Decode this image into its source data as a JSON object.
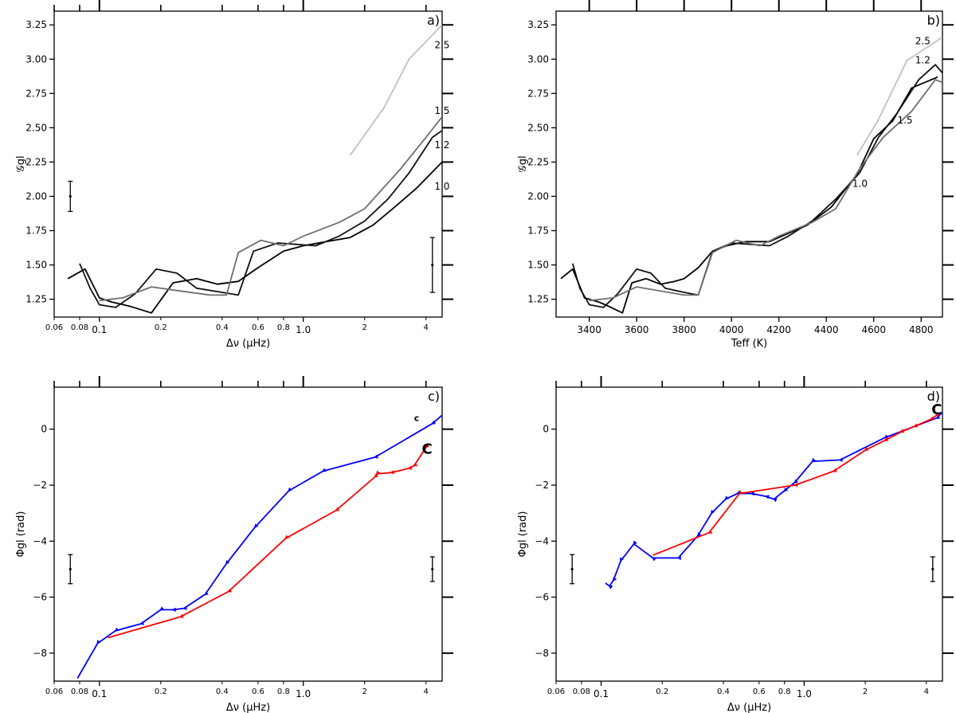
{
  "chart_data": [
    {
      "id": "a",
      "type": "line",
      "panel_label": "a)",
      "xscale": "log",
      "xlim": [
        0.06,
        4.8
      ],
      "ylim": [
        1.12,
        3.35
      ],
      "xlabel": "Δν (μHz)",
      "ylabel": "𝒢gl",
      "major_xticks": [
        {
          "v": 0.1,
          "label": "0.1"
        },
        {
          "v": 1.0,
          "label": "1.0"
        }
      ],
      "minor_xticks": [
        {
          "v": 0.06,
          "label": "0.06"
        },
        {
          "v": 0.08,
          "label": "0.08"
        },
        {
          "v": 0.2,
          "label": "0.2"
        },
        {
          "v": 0.4,
          "label": "0.4"
        },
        {
          "v": 0.6,
          "label": "0.6"
        },
        {
          "v": 0.8,
          "label": "0.8"
        },
        {
          "v": 2,
          "label": "2"
        },
        {
          "v": 4,
          "label": "4"
        }
      ],
      "yticks": [
        1.25,
        1.5,
        1.75,
        2.0,
        2.25,
        2.5,
        2.75,
        3.0,
        3.25
      ],
      "ytick_labels": [
        "1.25",
        "1.50",
        "1.75",
        "2.00",
        "2.25",
        "2.50",
        "2.75",
        "3.00",
        "3.25"
      ],
      "series": [
        {
          "name": "1.0",
          "color": "#000000",
          "x": [
            0.07,
            0.085,
            0.1,
            0.115,
            0.14,
            0.18,
            0.23,
            0.3,
            0.38,
            0.48,
            0.6,
            0.8,
            1.0,
            1.3,
            1.7,
            2.2,
            2.8,
            3.6,
            4.8
          ],
          "y": [
            1.4,
            1.47,
            1.26,
            1.23,
            1.2,
            1.15,
            1.37,
            1.4,
            1.36,
            1.38,
            1.48,
            1.6,
            1.64,
            1.67,
            1.7,
            1.79,
            1.92,
            2.06,
            2.25
          ]
        },
        {
          "name": "1.2",
          "color": "#111111",
          "x": [
            0.08,
            0.09,
            0.1,
            0.12,
            0.15,
            0.19,
            0.24,
            0.3,
            0.4,
            0.48,
            0.57,
            0.75,
            0.92,
            1.15,
            1.5,
            2.0,
            2.6,
            3.3,
            4.3,
            4.8
          ],
          "y": [
            1.51,
            1.33,
            1.21,
            1.19,
            1.29,
            1.47,
            1.44,
            1.33,
            1.3,
            1.28,
            1.6,
            1.66,
            1.65,
            1.64,
            1.71,
            1.82,
            1.98,
            2.17,
            2.43,
            2.48
          ]
        },
        {
          "name": "1.5",
          "color": "#6f6f6f",
          "x": [
            0.1,
            0.13,
            0.18,
            0.25,
            0.35,
            0.42,
            0.48,
            0.62,
            0.8,
            1.0,
            1.5,
            2.0,
            3.0,
            4.0,
            4.8
          ],
          "y": [
            1.24,
            1.26,
            1.34,
            1.31,
            1.28,
            1.28,
            1.59,
            1.68,
            1.64,
            1.71,
            1.81,
            1.91,
            2.2,
            2.43,
            2.58
          ]
        },
        {
          "name": "2.5",
          "color": "#c0c0c0",
          "x": [
            1.7,
            2.5,
            3.3,
            4.8
          ],
          "y": [
            2.3,
            2.65,
            3.0,
            3.25
          ]
        }
      ],
      "curve_labels": [
        {
          "text": "2.5",
          "color": "#a0a0a0",
          "x": 4.4,
          "y": 3.08
        },
        {
          "text": "1.5",
          "color": "#6f6f6f",
          "x": 4.4,
          "y": 2.6
        },
        {
          "text": "1.2",
          "color": "#000000",
          "x": 4.4,
          "y": 2.35
        },
        {
          "text": "1.0",
          "color": "#000000",
          "x": 4.4,
          "y": 2.05
        }
      ],
      "error_bars": [
        {
          "x": 0.072,
          "y": 2.0,
          "err": 0.11
        },
        {
          "x": 4.3,
          "y": 1.5,
          "err": 0.2
        }
      ]
    },
    {
      "id": "b",
      "type": "line",
      "panel_label": "b)",
      "xscale": "linear",
      "xlim": [
        3260,
        4890
      ],
      "ylim": [
        1.12,
        3.35
      ],
      "xlabel": "Teff (K)",
      "ylabel": "𝒢gl",
      "major_xticks": [
        {
          "v": 3400,
          "label": "3400"
        },
        {
          "v": 3600,
          "label": "3600"
        },
        {
          "v": 3800,
          "label": "3800"
        },
        {
          "v": 4000,
          "label": "4000"
        },
        {
          "v": 4200,
          "label": "4200"
        },
        {
          "v": 4400,
          "label": "4400"
        },
        {
          "v": 4600,
          "label": "4600"
        },
        {
          "v": 4800,
          "label": "4800"
        }
      ],
      "minor_xticks": [],
      "yticks": [
        1.25,
        1.5,
        1.75,
        2.0,
        2.25,
        2.5,
        2.75,
        3.0,
        3.25
      ],
      "ytick_labels": [
        "1.25",
        "1.50",
        "1.75",
        "2.00",
        "2.25",
        "2.50",
        "2.75",
        "3.00",
        "3.25"
      ],
      "series": [
        {
          "name": "1.0",
          "color": "#000000",
          "x": [
            3280,
            3330,
            3380,
            3440,
            3480,
            3540,
            3580,
            3640,
            3700,
            3760,
            3800,
            3860,
            3920,
            3980,
            4060,
            4160,
            4200,
            4320,
            4420,
            4530,
            4600,
            4680,
            4760,
            4870
          ],
          "y": [
            1.4,
            1.47,
            1.26,
            1.23,
            1.2,
            1.15,
            1.37,
            1.4,
            1.36,
            1.38,
            1.4,
            1.48,
            1.6,
            1.64,
            1.67,
            1.67,
            1.7,
            1.79,
            1.92,
            2.16,
            2.42,
            2.55,
            2.79,
            2.87
          ]
        },
        {
          "name": "1.2",
          "color": "#111111",
          "x": [
            3330,
            3360,
            3400,
            3460,
            3520,
            3600,
            3660,
            3720,
            3800,
            3860,
            3920,
            4000,
            4080,
            4160,
            4240,
            4340,
            4440,
            4540,
            4620,
            4700,
            4790,
            4860,
            4890
          ],
          "y": [
            1.51,
            1.33,
            1.21,
            1.19,
            1.29,
            1.47,
            1.44,
            1.33,
            1.3,
            1.28,
            1.6,
            1.66,
            1.65,
            1.64,
            1.71,
            1.82,
            1.98,
            2.17,
            2.43,
            2.61,
            2.85,
            2.96,
            2.9
          ]
        },
        {
          "name": "1.5",
          "color": "#6f6f6f",
          "x": [
            3400,
            3500,
            3600,
            3700,
            3800,
            3860,
            3920,
            4020,
            4120,
            4200,
            4340,
            4440,
            4540,
            4640,
            4760,
            4860,
            4890
          ],
          "y": [
            1.24,
            1.26,
            1.34,
            1.31,
            1.28,
            1.28,
            1.59,
            1.68,
            1.64,
            1.71,
            1.81,
            1.91,
            2.2,
            2.43,
            2.62,
            2.85,
            2.83
          ]
        },
        {
          "name": "2.5",
          "color": "#c0c0c0",
          "x": [
            4530,
            4620,
            4740,
            4890
          ],
          "y": [
            2.3,
            2.56,
            2.99,
            3.16
          ]
        }
      ],
      "curve_labels": [
        {
          "text": "2.5",
          "color": "#a0a0a0",
          "x": 4775,
          "y": 3.11
        },
        {
          "text": "1.2",
          "color": "#000000",
          "x": 4775,
          "y": 2.97
        },
        {
          "text": "1.5",
          "color": "#6f6f6f",
          "x": 4700,
          "y": 2.53
        },
        {
          "text": "1.0",
          "color": "#000000",
          "x": 4510,
          "y": 2.07
        }
      ],
      "error_bars": []
    },
    {
      "id": "c",
      "type": "line",
      "panel_label": "c)",
      "xscale": "log",
      "xlim": [
        0.06,
        4.8
      ],
      "ylim": [
        -9.0,
        1.5
      ],
      "xlabel": "Δν (μHz)",
      "ylabel": "Φgl (rad)",
      "major_xticks": [
        {
          "v": 0.1,
          "label": "0.1"
        },
        {
          "v": 1.0,
          "label": "1.0"
        }
      ],
      "minor_xticks": [
        {
          "v": 0.06,
          "label": "0.06"
        },
        {
          "v": 0.08,
          "label": "0.08"
        },
        {
          "v": 0.2,
          "label": "0.2"
        },
        {
          "v": 0.4,
          "label": "0.4"
        },
        {
          "v": 0.6,
          "label": "0.6"
        },
        {
          "v": 0.8,
          "label": "0.8"
        },
        {
          "v": 2,
          "label": "2"
        },
        {
          "v": 4,
          "label": "4"
        }
      ],
      "yticks": [
        -8,
        -6,
        -4,
        -2,
        0
      ],
      "ytick_labels": [
        "−8",
        "−6",
        "−4",
        "−2",
        "0"
      ],
      "series": [
        {
          "name": "blue",
          "color": "#0000ff",
          "x": [
            0.078,
            0.098,
            0.12,
            0.16,
            0.2,
            0.23,
            0.26,
            0.33,
            0.42,
            0.58,
            0.85,
            1.25,
            2.25,
            4.3,
            4.8
          ],
          "y": [
            -8.9,
            -7.65,
            -7.2,
            -6.95,
            -6.45,
            -6.45,
            -6.4,
            -5.9,
            -4.8,
            -3.5,
            -2.2,
            -1.5,
            -1.0,
            0.2,
            0.5
          ]
        },
        {
          "name": "red",
          "color": "#ff0000",
          "x": [
            0.11,
            0.25,
            0.43,
            0.82,
            1.45,
            2.25,
            2.3,
            2.7,
            3.3,
            3.5,
            4.0
          ],
          "y": [
            -7.45,
            -6.7,
            -5.8,
            -3.9,
            -2.9,
            -1.7,
            -1.6,
            -1.55,
            -1.4,
            -1.3,
            -0.65
          ]
        }
      ],
      "markers": [
        {
          "text": "c",
          "color": "#ffa500",
          "x": 3.6,
          "y": 0.4,
          "size": "small"
        },
        {
          "text": "C",
          "color": "#ffa500",
          "x": 4.05,
          "y": -0.7,
          "size": "large"
        }
      ],
      "error_bars": [
        {
          "x": 0.072,
          "y": -5.0,
          "err": 0.52
        },
        {
          "x": 4.3,
          "y": -5.0,
          "err": 0.44
        }
      ]
    },
    {
      "id": "d",
      "type": "line",
      "panel_label": "d)",
      "xscale": "log",
      "xlim": [
        0.06,
        4.8
      ],
      "ylim": [
        -9.0,
        1.5
      ],
      "xlabel": "Δν (μHz)",
      "ylabel": "Φgl (rad)",
      "major_xticks": [
        {
          "v": 0.1,
          "label": "0.1"
        },
        {
          "v": 1.0,
          "label": "1.0"
        }
      ],
      "minor_xticks": [
        {
          "v": 0.06,
          "label": "0.06"
        },
        {
          "v": 0.08,
          "label": "0.08"
        },
        {
          "v": 0.2,
          "label": "0.2"
        },
        {
          "v": 0.4,
          "label": "0.4"
        },
        {
          "v": 0.6,
          "label": "0.6"
        },
        {
          "v": 0.8,
          "label": "0.8"
        },
        {
          "v": 2,
          "label": "2"
        },
        {
          "v": 4,
          "label": "4"
        }
      ],
      "yticks": [
        -8,
        -6,
        -4,
        -2,
        0
      ],
      "ytick_labels": [
        "−8",
        "−6",
        "−4",
        "−2",
        "0"
      ],
      "series": [
        {
          "name": "blue",
          "color": "#0000ff",
          "x": [
            0.105,
            0.11,
            0.115,
            0.125,
            0.145,
            0.18,
            0.24,
            0.3,
            0.35,
            0.41,
            0.47,
            0.55,
            0.65,
            0.71,
            0.8,
            0.9,
            1.1,
            1.5,
            2.5,
            4.5,
            4.8
          ],
          "y": [
            -5.5,
            -5.6,
            -5.4,
            -4.7,
            -4.1,
            -4.6,
            -4.6,
            -3.8,
            -3.0,
            -2.5,
            -2.3,
            -2.3,
            -2.4,
            -2.5,
            -2.2,
            -1.9,
            -1.15,
            -1.1,
            -0.3,
            0.4,
            0.6
          ]
        },
        {
          "name": "red",
          "color": "#ff0000",
          "x": [
            0.18,
            0.34,
            0.48,
            0.9,
            1.4,
            2.0,
            2.5,
            3.0,
            3.5,
            4.2,
            4.5
          ],
          "y": [
            -4.5,
            -3.7,
            -2.3,
            -2.0,
            -1.5,
            -0.75,
            -0.4,
            -0.1,
            0.1,
            0.35,
            0.5
          ]
        }
      ],
      "markers": [
        {
          "text": "C",
          "color": "#ffa500",
          "x": 4.5,
          "y": 0.7,
          "size": "large"
        }
      ],
      "error_bars": [
        {
          "x": 0.072,
          "y": -5.0,
          "err": 0.52
        },
        {
          "x": 4.3,
          "y": -5.0,
          "err": 0.44
        }
      ]
    }
  ]
}
